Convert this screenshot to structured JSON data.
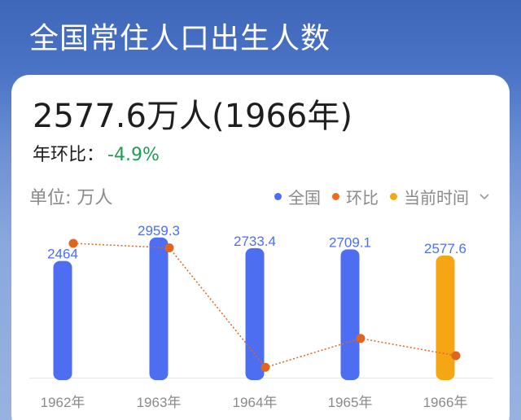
{
  "header": {
    "title": "全国常住人口出生人数"
  },
  "card": {
    "headline": "2577.6万人(1966年)",
    "yoy_label": "年环比：",
    "yoy_value": "-4.9%",
    "unit": "单位: 万人",
    "legend": [
      {
        "label": "全国",
        "color": "#4e6ef2"
      },
      {
        "label": "环比",
        "color": "#f26a1b"
      },
      {
        "label": "当前时间",
        "color": "#f5a614"
      }
    ],
    "legend_icon": "chevron-down-icon"
  },
  "colors": {
    "bar": "#4e6ef2",
    "bar_current": "#f5a614",
    "line": "#e0661f",
    "value_label": "#4e6ef2"
  },
  "chart_data": {
    "type": "bar",
    "categories": [
      "1962年",
      "1963年",
      "1964年",
      "1965年",
      "1966年"
    ],
    "series": [
      {
        "name": "全国",
        "values": [
          2464,
          2959.3,
          2733.4,
          2709.1,
          2577.6
        ]
      },
      {
        "name": "环比",
        "type": "line",
        "values_percent": [
          null,
          20.1,
          -7.6,
          -0.9,
          -4.9
        ]
      }
    ],
    "value_labels": [
      "2464",
      "2959.3",
      "2733.4",
      "2709.1",
      "2577.6"
    ],
    "current_category": "1966年",
    "ylim": [
      0,
      3000
    ],
    "grid": false,
    "legend_position": "top-right"
  }
}
